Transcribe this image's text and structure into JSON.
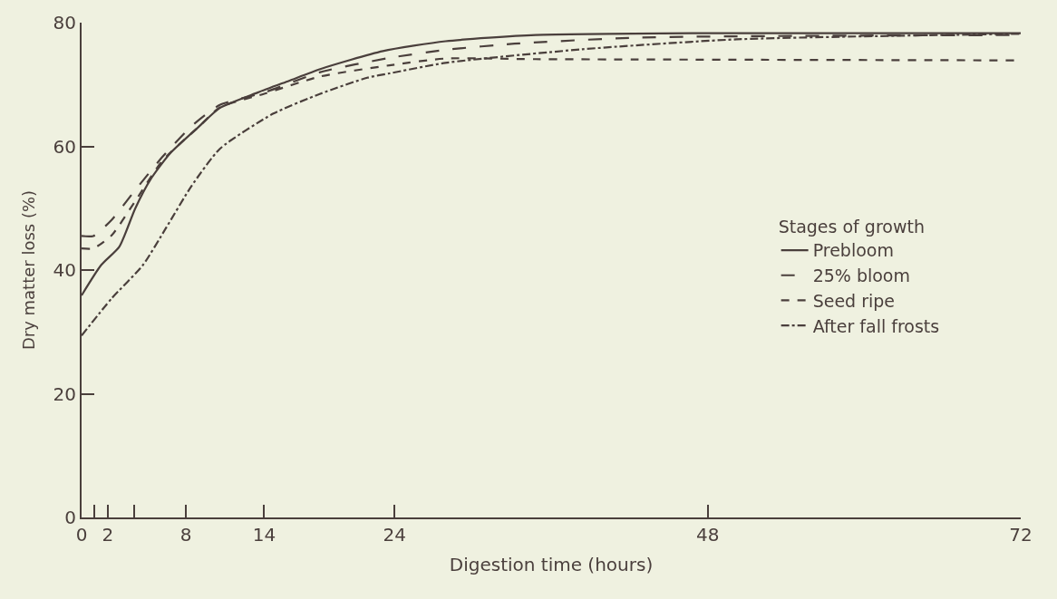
{
  "chart_data": {
    "type": "line",
    "xlabel": "Digestion time (hours)",
    "ylabel": "Dry matter loss (%)",
    "legend_title": "Stages of growth",
    "legend": "right",
    "grid": false,
    "marker": "none",
    "xlim": [
      0,
      72
    ],
    "xticks": [
      0,
      {
        "value": 1,
        "label": null
      },
      2,
      {
        "value": 4,
        "label": null
      },
      8,
      14,
      24,
      48,
      72
    ],
    "ylim": [
      0,
      80
    ],
    "yticks": [
      0,
      20,
      40,
      60,
      80
    ],
    "series": [
      {
        "name": "Prebloom",
        "color": "#4a3f3c",
        "line_style": "solid",
        "x": [
          0,
          1.5,
          2.9,
          4.1,
          5.3,
          6.8,
          9,
          10.6,
          13.5,
          15.9,
          18.3,
          23.1,
          27.9,
          34.8,
          48,
          72
        ],
        "values": [
          35.9,
          40.8,
          43.8,
          49.9,
          54.7,
          58.9,
          63.2,
          66.2,
          68.7,
          70.6,
          72.5,
          75.4,
          77,
          78,
          78.3,
          78.3
        ]
      },
      {
        "name": "25% bloom",
        "color": "#4a3f3c",
        "line_style": "longdashed",
        "x": [
          0,
          0.9,
          2.3,
          4.1,
          6.2,
          8.4,
          10.6,
          14,
          18.3,
          23.6,
          27.9,
          33.2,
          42.9,
          72
        ],
        "values": [
          45.5,
          45.5,
          48.1,
          52.9,
          58.3,
          63.2,
          66.7,
          68.7,
          72,
          74.3,
          75.6,
          76.6,
          77.6,
          78
        ]
      },
      {
        "name": "Seed ripe",
        "color": "#4a3f3c",
        "line_style": "dashed",
        "x": [
          0,
          0.9,
          2.3,
          4.1,
          6.2,
          9,
          10.6,
          14,
          18.3,
          23.6,
          27.9,
          34.8,
          72
        ],
        "values": [
          43.5,
          43.5,
          45.6,
          51.1,
          57.7,
          63.2,
          66.3,
          68.5,
          71.3,
          73.1,
          74.2,
          74.1,
          73.9
        ]
      },
      {
        "name": "After fall frosts",
        "color": "#4a3f3c",
        "line_style": "dashdot",
        "x": [
          0,
          2.3,
          4.7,
          6.5,
          8.4,
          10.6,
          14.7,
          18.3,
          21.9,
          23.6,
          27.9,
          38.4,
          50.2,
          72
        ],
        "values": [
          29.4,
          35.4,
          40.8,
          46.9,
          53.5,
          59.6,
          65.3,
          68.5,
          71.1,
          71.8,
          73.5,
          75.7,
          77.3,
          78.2
        ]
      }
    ]
  }
}
